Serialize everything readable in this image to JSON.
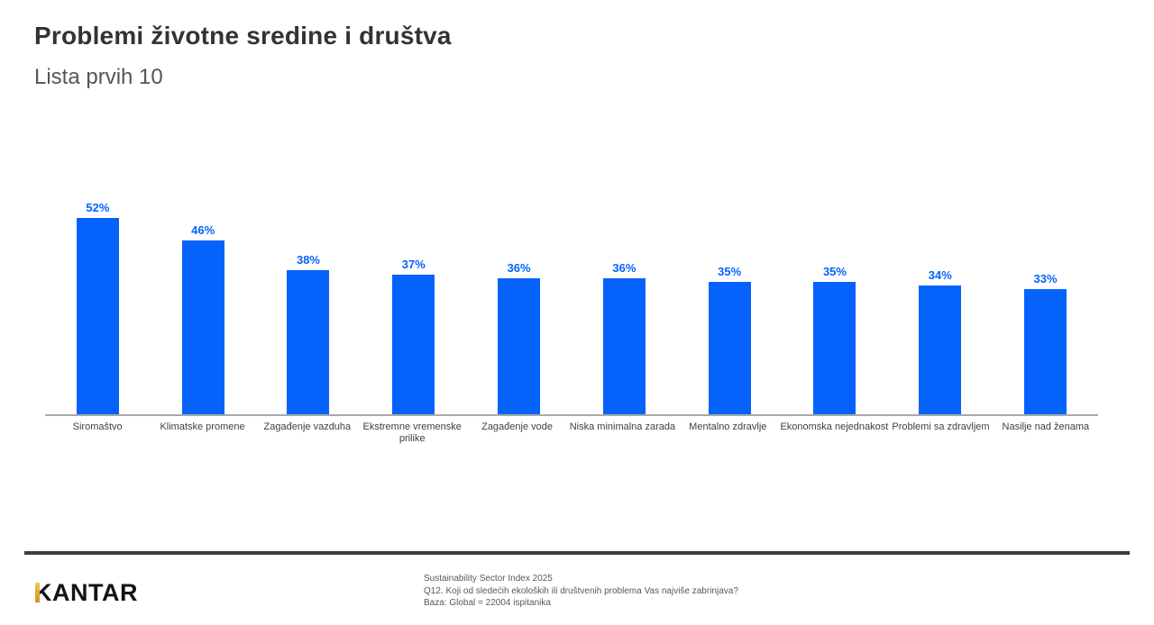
{
  "page": {
    "title": "Problemi životne sredine i društva",
    "subtitle": "Lista prvih 10"
  },
  "chart_data": {
    "type": "bar",
    "title": "Problemi životne sredine i društva",
    "subtitle": "Lista prvih 10",
    "categories": [
      "Siromaštvo",
      "Klimatske promene",
      "Zagađenje vazduha",
      "Ekstremne vremenske\nprilike",
      "Zagađenje vode",
      "Niska minimalna zarada",
      "Mentalno zdravlje",
      "Ekonomska nejednakost",
      "Problemi sa zdravljem",
      "Nasilje nad ženama"
    ],
    "values": [
      52,
      46,
      38,
      37,
      36,
      36,
      35,
      35,
      34,
      33
    ],
    "value_labels": [
      "52%",
      "46%",
      "38%",
      "37%",
      "36%",
      "36%",
      "35%",
      "35%",
      "34%",
      "33%"
    ],
    "unit": "%",
    "bar_color": "#0563fb",
    "value_label_color": "#0563fb",
    "axis_line_color": "#a9a9a9",
    "ylim": [
      0,
      60
    ],
    "grid": false,
    "legend": "none",
    "value_label_position": "above-bars"
  },
  "footer": {
    "logo_text": "KANTAR",
    "source_lines": [
      "Sustainability Sector Index 2025",
      "Q12. Koji od sledećih ekoloških ili društvenih problema Vas najviše zabrinjava?",
      "Baza: Global = 22004 ispitanika"
    ]
  }
}
